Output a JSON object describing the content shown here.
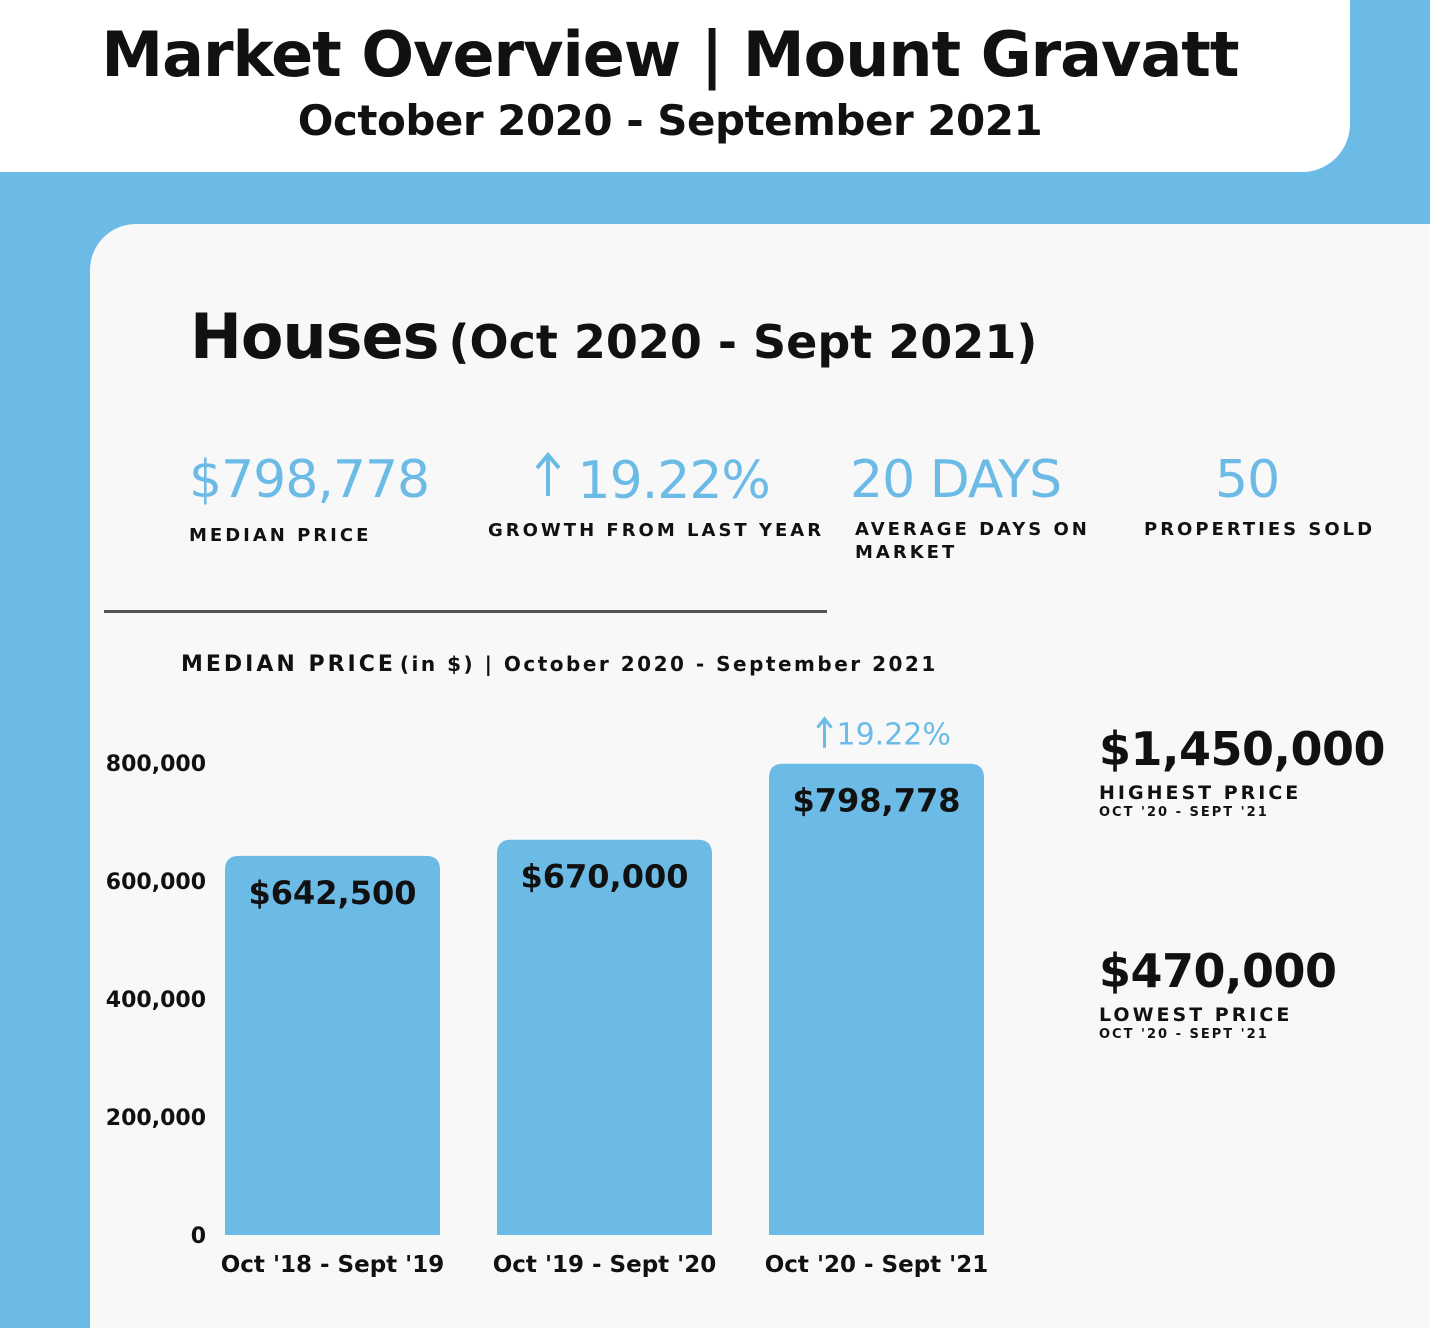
{
  "header": {
    "title": "Market Overview | Mount Gravatt",
    "subtitle": "October 2020 - September 2021"
  },
  "section": {
    "title": "Houses",
    "period": "(Oct 2020 - Sept 2021)"
  },
  "stats": {
    "median_price": {
      "value": "$798,778",
      "label": "MEDIAN PRICE"
    },
    "growth": {
      "value": "19.22%",
      "label": "GROWTH FROM LAST YEAR",
      "icon": "arrow-up-icon"
    },
    "days_on_market": {
      "value": "20 DAYS",
      "label_line1": "AVERAGE DAYS ON",
      "label_line2": "MARKET"
    },
    "properties_sold": {
      "value": "50",
      "label": "PROPERTIES SOLD"
    }
  },
  "chart_heading": {
    "main": "MEDIAN PRICE",
    "rest": "(in $) | October 2020 - September 2021"
  },
  "chart_data": {
    "type": "bar",
    "title": "MEDIAN PRICE(in $) | October 2020 - September 2021",
    "categories": [
      "Oct '18 - Sept '19",
      "Oct '19 - Sept '20",
      "Oct '20 - Sept '21"
    ],
    "values": [
      642500,
      670000,
      798778
    ],
    "value_labels": [
      "$642,500",
      "$670,000",
      "$798,778"
    ],
    "yticks": [
      0,
      200000,
      400000,
      600000,
      800000
    ],
    "ytick_labels": [
      "0",
      "200,000",
      "400,000",
      "600,000",
      "800,000"
    ],
    "ylim": [
      0,
      800000
    ],
    "grid": false,
    "annotation": {
      "category_index": 2,
      "text": "19.22%",
      "icon": "arrow-up-icon"
    },
    "color": "#6cbbe7"
  },
  "side_stats": {
    "highest": {
      "value": "$1,450,000",
      "label": "HIGHEST PRICE",
      "period": "OCT '20 - SEPT '21"
    },
    "lowest": {
      "value": "$470,000",
      "label": "LOWEST PRICE",
      "period": "OCT '20 - SEPT '21"
    }
  },
  "colors": {
    "accent": "#6cbbe7",
    "text": "#111111",
    "card": "#f8f8f8"
  }
}
